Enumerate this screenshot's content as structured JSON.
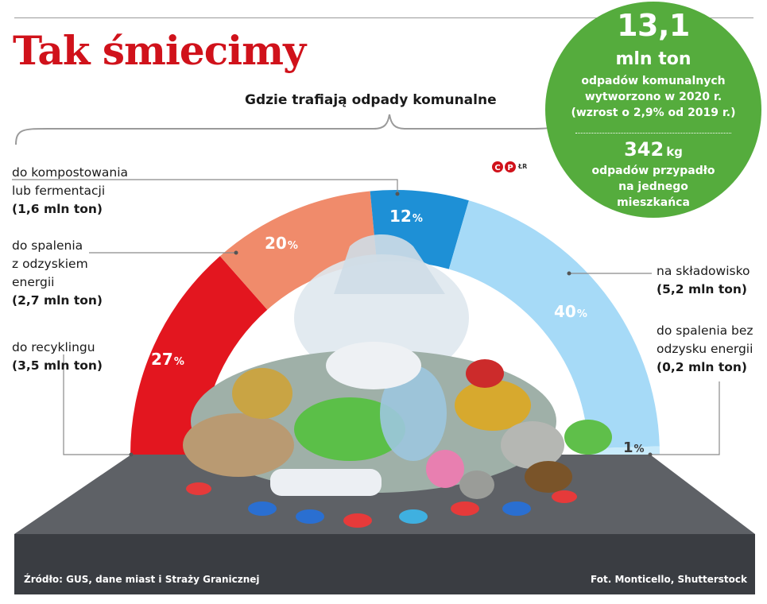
{
  "header": {
    "title": "Tak śmiecimy",
    "subtitle": "Gdzie trafiają odpady komunalne",
    "logo_text": "ŁR"
  },
  "badge": {
    "big_number": "13,1",
    "unit": "mln ton",
    "text": "odpadów komunalnych\nwytworzono w 2020 r.\n(wzrost o 2,9% od 2019 r.)",
    "number2": "342",
    "number2_unit": "kg",
    "text2": "odpadów przypadło\nna jednego\nmieszkańca"
  },
  "chart_data": {
    "type": "pie",
    "title": "Gdzie trafiają odpady komunalne",
    "unit": "%",
    "slices": [
      {
        "id": "recycling",
        "label": "do recyklingu",
        "amount": "(3,5 mln ton)",
        "value": 27,
        "value_label": "27",
        "color": "#e3161f"
      },
      {
        "id": "energy-recovery",
        "label": "do spalenia\nz odzyskiem\nenergii",
        "amount": "(2,7 mln ton)",
        "value": 20,
        "value_label": "20",
        "color": "#f08b6b"
      },
      {
        "id": "composting",
        "label": "do kompostowania\nlub fermentacji",
        "amount": "(1,6 mln ton)",
        "value": 12,
        "value_label": "12",
        "color": "#1e90d6"
      },
      {
        "id": "landfill",
        "label": "na składowisko",
        "amount": "(5,2 mln ton)",
        "value": 40,
        "value_label": "40",
        "color": "#a6daf7"
      },
      {
        "id": "incineration",
        "label": "do spalenia bez\nodzysku energii",
        "amount": "(0,2 mln ton)",
        "value": 1,
        "value_label": "1",
        "color": "#c9ebfb"
      }
    ]
  },
  "footer": {
    "source": "Źródło: GUS, dane miast i Straży Granicznej",
    "photo": "Fot. Monticello, Shutterstock"
  }
}
